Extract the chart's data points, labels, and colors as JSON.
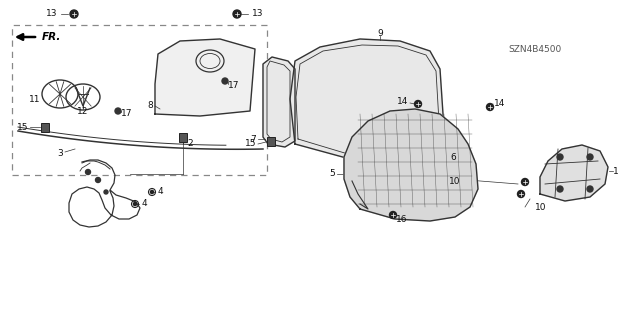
{
  "bg_color": "#ffffff",
  "line_color": "#333333",
  "dark_color": "#111111",
  "diagram_code": "SZN4B4500",
  "label_fontsize": 6.5,
  "small_fontsize": 5.5
}
